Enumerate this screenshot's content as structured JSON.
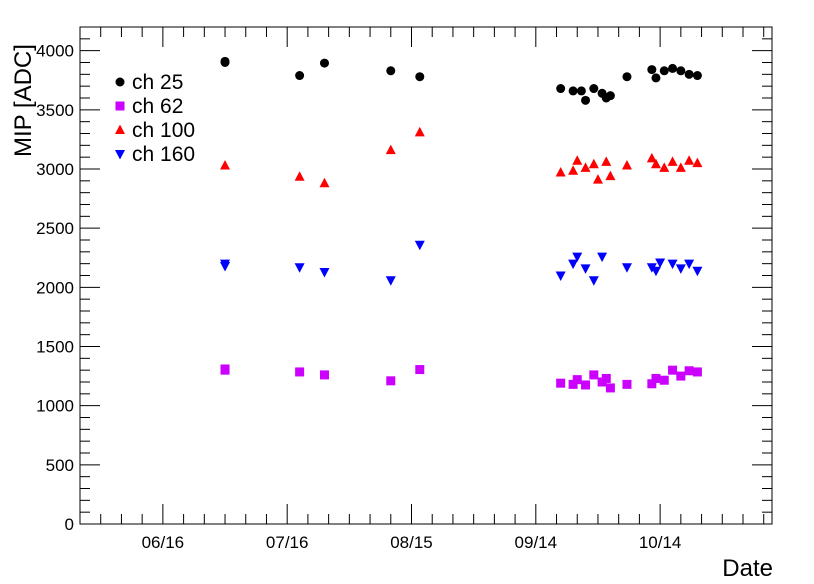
{
  "chart_data": {
    "type": "scatter",
    "title": "",
    "xlabel": "Date",
    "ylabel": "MIP [ADC]",
    "x_ticks": [
      {
        "date": "06/16",
        "label": "06/16"
      },
      {
        "date": "07/16",
        "label": "07/16"
      },
      {
        "date": "08/15",
        "label": "08/15"
      },
      {
        "date": "09/14",
        "label": "09/14"
      },
      {
        "date": "10/14",
        "label": "10/14"
      }
    ],
    "xlim": [
      "05/27",
      "11/10"
    ],
    "ylim": [
      0,
      4200
    ],
    "y_ticks": [
      0,
      500,
      1000,
      1500,
      2000,
      2500,
      3000,
      3500,
      4000
    ],
    "grid": false,
    "legend": "top-left",
    "series": [
      {
        "name": "ch 25",
        "marker": "circle",
        "color": "#000000",
        "points": [
          {
            "x": "07/01",
            "y": 3900
          },
          {
            "x": "07/01",
            "y": 3910
          },
          {
            "x": "07/19",
            "y": 3790
          },
          {
            "x": "07/25",
            "y": 3895
          },
          {
            "x": "08/10",
            "y": 3830
          },
          {
            "x": "08/17",
            "y": 3780
          },
          {
            "x": "09/20",
            "y": 3680
          },
          {
            "x": "09/23",
            "y": 3660
          },
          {
            "x": "09/25",
            "y": 3660
          },
          {
            "x": "09/26",
            "y": 3580
          },
          {
            "x": "09/28",
            "y": 3680
          },
          {
            "x": "09/30",
            "y": 3640
          },
          {
            "x": "10/01",
            "y": 3600
          },
          {
            "x": "10/02",
            "y": 3620
          },
          {
            "x": "10/06",
            "y": 3780
          },
          {
            "x": "10/12",
            "y": 3840
          },
          {
            "x": "10/13",
            "y": 3770
          },
          {
            "x": "10/15",
            "y": 3830
          },
          {
            "x": "10/17",
            "y": 3850
          },
          {
            "x": "10/19",
            "y": 3830
          },
          {
            "x": "10/21",
            "y": 3800
          },
          {
            "x": "10/23",
            "y": 3790
          }
        ]
      },
      {
        "name": "ch 62",
        "marker": "square",
        "color": "#cc00ff",
        "points": [
          {
            "x": "07/01",
            "y": 1300
          },
          {
            "x": "07/01",
            "y": 1310
          },
          {
            "x": "07/19",
            "y": 1285
          },
          {
            "x": "07/25",
            "y": 1260
          },
          {
            "x": "08/10",
            "y": 1210
          },
          {
            "x": "08/17",
            "y": 1305
          },
          {
            "x": "09/20",
            "y": 1190
          },
          {
            "x": "09/23",
            "y": 1180
          },
          {
            "x": "09/24",
            "y": 1220
          },
          {
            "x": "09/26",
            "y": 1175
          },
          {
            "x": "09/28",
            "y": 1260
          },
          {
            "x": "09/30",
            "y": 1200
          },
          {
            "x": "10/01",
            "y": 1230
          },
          {
            "x": "10/02",
            "y": 1150
          },
          {
            "x": "10/06",
            "y": 1180
          },
          {
            "x": "10/12",
            "y": 1185
          },
          {
            "x": "10/13",
            "y": 1230
          },
          {
            "x": "10/15",
            "y": 1215
          },
          {
            "x": "10/17",
            "y": 1300
          },
          {
            "x": "10/19",
            "y": 1250
          },
          {
            "x": "10/21",
            "y": 1295
          },
          {
            "x": "10/23",
            "y": 1285
          }
        ]
      },
      {
        "name": "ch 100",
        "marker": "triangle-up",
        "color": "#ff0000",
        "points": [
          {
            "x": "07/01",
            "y": 3030
          },
          {
            "x": "07/19",
            "y": 2935
          },
          {
            "x": "07/25",
            "y": 2880
          },
          {
            "x": "08/10",
            "y": 3160
          },
          {
            "x": "08/17",
            "y": 3310
          },
          {
            "x": "09/20",
            "y": 2970
          },
          {
            "x": "09/23",
            "y": 2985
          },
          {
            "x": "09/24",
            "y": 3070
          },
          {
            "x": "09/26",
            "y": 3010
          },
          {
            "x": "09/28",
            "y": 3040
          },
          {
            "x": "09/29",
            "y": 2910
          },
          {
            "x": "10/01",
            "y": 3060
          },
          {
            "x": "10/02",
            "y": 2940
          },
          {
            "x": "10/06",
            "y": 3030
          },
          {
            "x": "10/12",
            "y": 3090
          },
          {
            "x": "10/13",
            "y": 3040
          },
          {
            "x": "10/15",
            "y": 3010
          },
          {
            "x": "10/17",
            "y": 3060
          },
          {
            "x": "10/19",
            "y": 3010
          },
          {
            "x": "10/21",
            "y": 3070
          },
          {
            "x": "10/23",
            "y": 3050
          }
        ]
      },
      {
        "name": "ch 160",
        "marker": "triangle-down",
        "color": "#0000ff",
        "points": [
          {
            "x": "07/01",
            "y": 2200
          },
          {
            "x": "07/01",
            "y": 2180
          },
          {
            "x": "07/19",
            "y": 2170
          },
          {
            "x": "07/25",
            "y": 2130
          },
          {
            "x": "08/10",
            "y": 2060
          },
          {
            "x": "08/17",
            "y": 2360
          },
          {
            "x": "09/20",
            "y": 2100
          },
          {
            "x": "09/23",
            "y": 2200
          },
          {
            "x": "09/24",
            "y": 2260
          },
          {
            "x": "09/26",
            "y": 2160
          },
          {
            "x": "09/28",
            "y": 2060
          },
          {
            "x": "09/30",
            "y": 2260
          },
          {
            "x": "10/06",
            "y": 2170
          },
          {
            "x": "10/12",
            "y": 2170
          },
          {
            "x": "10/13",
            "y": 2140
          },
          {
            "x": "10/14",
            "y": 2210
          },
          {
            "x": "10/17",
            "y": 2200
          },
          {
            "x": "10/19",
            "y": 2160
          },
          {
            "x": "10/21",
            "y": 2200
          },
          {
            "x": "10/23",
            "y": 2140
          }
        ]
      }
    ]
  }
}
